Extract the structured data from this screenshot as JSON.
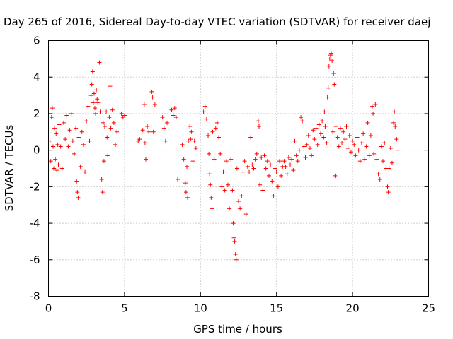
{
  "chart_data": {
    "type": "scatter",
    "title": "Day 265 of 2016, Sidereal Day-to-day VTEC variation (SDTVAR) for receiver daej",
    "xlabel": "GPS time / hours",
    "ylabel": "SDTVAR / TECUs",
    "xlim": [
      0,
      25
    ],
    "ylim": [
      -8,
      6
    ],
    "xticks": [
      0,
      5,
      10,
      15,
      20,
      25
    ],
    "yticks": [
      -8,
      -6,
      -4,
      -2,
      0,
      2,
      4,
      6
    ],
    "xtick_labels": [
      "0",
      "5",
      "10",
      "15",
      "20",
      "25"
    ],
    "ytick_labels": [
      "-8",
      "-6",
      "-4",
      "-2",
      "0",
      "2",
      "4",
      "6"
    ],
    "grid": true,
    "marker": "+",
    "color": "#ff0000",
    "series": [
      {
        "name": "SDTVAR",
        "points": [
          [
            0.1,
            0.5
          ],
          [
            0.15,
            -0.6
          ],
          [
            0.2,
            1.8
          ],
          [
            0.25,
            2.3
          ],
          [
            0.3,
            0.2
          ],
          [
            0.35,
            -1.0
          ],
          [
            0.4,
            1.2
          ],
          [
            0.45,
            -0.5
          ],
          [
            0.5,
            0.9
          ],
          [
            0.55,
            -1.1
          ],
          [
            0.6,
            0.3
          ],
          [
            0.65,
            -0.8
          ],
          [
            0.7,
            1.4
          ],
          [
            0.8,
            0.2
          ],
          [
            0.9,
            -1.0
          ],
          [
            1.0,
            1.5
          ],
          [
            1.1,
            0.6
          ],
          [
            1.2,
            1.9
          ],
          [
            1.3,
            0.2
          ],
          [
            1.4,
            1.1
          ],
          [
            1.5,
            2.0
          ],
          [
            1.6,
            0.5
          ],
          [
            1.7,
            -0.2
          ],
          [
            1.8,
            1.2
          ],
          [
            1.85,
            -1.7
          ],
          [
            1.9,
            -2.3
          ],
          [
            1.95,
            -2.6
          ],
          [
            2.0,
            0.7
          ],
          [
            2.1,
            -0.9
          ],
          [
            2.2,
            1.0
          ],
          [
            2.3,
            0.3
          ],
          [
            2.4,
            -1.2
          ],
          [
            2.5,
            1.6
          ],
          [
            2.6,
            2.4
          ],
          [
            2.7,
            0.5
          ],
          [
            2.8,
            3.0
          ],
          [
            2.85,
            3.6
          ],
          [
            2.9,
            4.3
          ],
          [
            2.95,
            2.6
          ],
          [
            3.0,
            3.1
          ],
          [
            3.05,
            2.3
          ],
          [
            3.1,
            2.0
          ],
          [
            3.15,
            3.3
          ],
          [
            3.2,
            2.8
          ],
          [
            3.25,
            2.6
          ],
          [
            3.35,
            4.8
          ],
          [
            3.4,
            2.1
          ],
          [
            3.5,
            -1.6
          ],
          [
            3.55,
            -2.3
          ],
          [
            3.6,
            1.5
          ],
          [
            3.65,
            -0.6
          ],
          [
            3.7,
            1.3
          ],
          [
            3.8,
            2.1
          ],
          [
            3.85,
            0.7
          ],
          [
            3.9,
            -0.3
          ],
          [
            4.0,
            1.8
          ],
          [
            4.05,
            3.5
          ],
          [
            4.1,
            1.2
          ],
          [
            4.2,
            2.2
          ],
          [
            4.3,
            1.5
          ],
          [
            4.4,
            0.3
          ],
          [
            4.5,
            1.0
          ],
          [
            4.8,
            2.0
          ],
          [
            4.9,
            1.8
          ],
          [
            5.0,
            1.9
          ],
          [
            5.9,
            0.5
          ],
          [
            6.0,
            0.6
          ],
          [
            6.2,
            1.1
          ],
          [
            6.3,
            2.5
          ],
          [
            6.35,
            0.4
          ],
          [
            6.4,
            -0.5
          ],
          [
            6.5,
            1.3
          ],
          [
            6.6,
            1.0
          ],
          [
            6.8,
            3.2
          ],
          [
            6.85,
            2.9
          ],
          [
            6.9,
            1.0
          ],
          [
            7.0,
            2.5
          ],
          [
            7.5,
            1.8
          ],
          [
            7.6,
            1.2
          ],
          [
            7.7,
            0.5
          ],
          [
            7.8,
            1.5
          ],
          [
            8.1,
            2.2
          ],
          [
            8.2,
            1.9
          ],
          [
            8.3,
            2.3
          ],
          [
            8.4,
            1.8
          ],
          [
            8.5,
            -1.6
          ],
          [
            8.8,
            0.3
          ],
          [
            8.9,
            -0.5
          ],
          [
            9.0,
            -1.8
          ],
          [
            9.05,
            -2.3
          ],
          [
            9.1,
            -0.9
          ],
          [
            9.15,
            -2.6
          ],
          [
            9.2,
            0.5
          ],
          [
            9.3,
            1.3
          ],
          [
            9.35,
            0.6
          ],
          [
            9.4,
            1.0
          ],
          [
            9.5,
            -0.6
          ],
          [
            9.6,
            0.5
          ],
          [
            9.7,
            0.1
          ],
          [
            10.2,
            2.1
          ],
          [
            10.3,
            2.4
          ],
          [
            10.4,
            1.7
          ],
          [
            10.5,
            0.8
          ],
          [
            10.55,
            -0.2
          ],
          [
            10.6,
            -1.3
          ],
          [
            10.65,
            -1.9
          ],
          [
            10.7,
            -2.6
          ],
          [
            10.75,
            -3.2
          ],
          [
            10.8,
            1.0
          ],
          [
            10.9,
            -0.5
          ],
          [
            11.0,
            1.2
          ],
          [
            11.1,
            1.5
          ],
          [
            11.2,
            0.7
          ],
          [
            11.3,
            -0.2
          ],
          [
            11.4,
            -2.0
          ],
          [
            11.5,
            -1.2
          ],
          [
            11.6,
            -2.2
          ],
          [
            11.7,
            -0.6
          ],
          [
            11.8,
            -1.9
          ],
          [
            11.9,
            -3.2
          ],
          [
            12.0,
            -0.5
          ],
          [
            12.1,
            -2.2
          ],
          [
            12.15,
            -4.0
          ],
          [
            12.2,
            -4.8
          ],
          [
            12.25,
            -5.0
          ],
          [
            12.3,
            -5.7
          ],
          [
            12.35,
            -6.0
          ],
          [
            12.4,
            -1.0
          ],
          [
            12.5,
            -2.8
          ],
          [
            12.6,
            -3.2
          ],
          [
            12.7,
            -2.5
          ],
          [
            12.8,
            -1.2
          ],
          [
            12.9,
            -0.6
          ],
          [
            13.0,
            -3.5
          ],
          [
            13.1,
            -0.9
          ],
          [
            13.2,
            -1.2
          ],
          [
            13.3,
            0.7
          ],
          [
            13.4,
            -0.8
          ],
          [
            13.5,
            -1.0
          ],
          [
            13.6,
            -0.5
          ],
          [
            13.7,
            -0.2
          ],
          [
            13.8,
            1.6
          ],
          [
            13.85,
            1.3
          ],
          [
            13.9,
            -1.9
          ],
          [
            14.0,
            -0.4
          ],
          [
            14.1,
            -2.2
          ],
          [
            14.2,
            -0.3
          ],
          [
            14.3,
            -1.0
          ],
          [
            14.4,
            -0.6
          ],
          [
            14.5,
            -1.4
          ],
          [
            14.6,
            -0.8
          ],
          [
            14.7,
            -1.7
          ],
          [
            14.8,
            -2.5
          ],
          [
            14.9,
            -1.0
          ],
          [
            15.0,
            -1.2
          ],
          [
            15.1,
            -2.0
          ],
          [
            15.2,
            -0.6
          ],
          [
            15.3,
            -1.4
          ],
          [
            15.4,
            -0.9
          ],
          [
            15.5,
            -0.6
          ],
          [
            15.6,
            -0.9
          ],
          [
            15.7,
            -1.3
          ],
          [
            15.8,
            -0.4
          ],
          [
            15.9,
            -0.8
          ],
          [
            16.0,
            -0.5
          ],
          [
            16.1,
            -1.1
          ],
          [
            16.2,
            0.5
          ],
          [
            16.3,
            -0.3
          ],
          [
            16.4,
            -0.6
          ],
          [
            16.5,
            0.0
          ],
          [
            16.6,
            1.8
          ],
          [
            16.7,
            1.6
          ],
          [
            16.8,
            0.2
          ],
          [
            16.9,
            -0.4
          ],
          [
            17.0,
            0.3
          ],
          [
            17.1,
            0.8
          ],
          [
            17.2,
            0.1
          ],
          [
            17.3,
            -0.3
          ],
          [
            17.4,
            1.1
          ],
          [
            17.5,
            0.6
          ],
          [
            17.6,
            1.2
          ],
          [
            17.7,
            0.3
          ],
          [
            17.8,
            1.4
          ],
          [
            17.9,
            0.9
          ],
          [
            18.0,
            1.6
          ],
          [
            18.1,
            0.7
          ],
          [
            18.15,
            2.1
          ],
          [
            18.2,
            1.3
          ],
          [
            18.3,
            0.4
          ],
          [
            18.35,
            2.9
          ],
          [
            18.4,
            3.4
          ],
          [
            18.45,
            4.6
          ],
          [
            18.5,
            5.0
          ],
          [
            18.55,
            5.2
          ],
          [
            18.6,
            5.3
          ],
          [
            18.65,
            4.9
          ],
          [
            18.7,
            1.0
          ],
          [
            18.75,
            4.2
          ],
          [
            18.8,
            3.6
          ],
          [
            18.85,
            -1.4
          ],
          [
            18.9,
            1.3
          ],
          [
            19.0,
            0.7
          ],
          [
            19.1,
            0.2
          ],
          [
            19.2,
            1.2
          ],
          [
            19.3,
            0.4
          ],
          [
            19.4,
            1.0
          ],
          [
            19.5,
            0.6
          ],
          [
            19.6,
            1.3
          ],
          [
            19.7,
            0.1
          ],
          [
            19.8,
            0.8
          ],
          [
            19.9,
            -0.1
          ],
          [
            20.0,
            0.5
          ],
          [
            20.1,
            0.3
          ],
          [
            20.2,
            -0.3
          ],
          [
            20.3,
            0.7
          ],
          [
            20.4,
            0.0
          ],
          [
            20.5,
            -0.6
          ],
          [
            20.6,
            0.4
          ],
          [
            20.7,
            0.9
          ],
          [
            20.8,
            -0.5
          ],
          [
            20.9,
            0.2
          ],
          [
            21.0,
            1.5
          ],
          [
            21.1,
            -0.3
          ],
          [
            21.2,
            0.8
          ],
          [
            21.3,
            2.4
          ],
          [
            21.35,
            2.0
          ],
          [
            21.4,
            -0.2
          ],
          [
            21.5,
            2.5
          ],
          [
            21.6,
            -0.5
          ],
          [
            21.7,
            -1.3
          ],
          [
            21.8,
            -1.6
          ],
          [
            21.9,
            0.2
          ],
          [
            22.0,
            -0.6
          ],
          [
            22.1,
            0.4
          ],
          [
            22.2,
            -1.0
          ],
          [
            22.3,
            -2.0
          ],
          [
            22.35,
            -2.3
          ],
          [
            22.4,
            -1.0
          ],
          [
            22.5,
            0.1
          ],
          [
            22.6,
            -0.7
          ],
          [
            22.7,
            1.5
          ],
          [
            22.75,
            2.1
          ],
          [
            22.8,
            1.3
          ],
          [
            22.9,
            0.6
          ],
          [
            23.0,
            0.0
          ]
        ]
      }
    ]
  }
}
